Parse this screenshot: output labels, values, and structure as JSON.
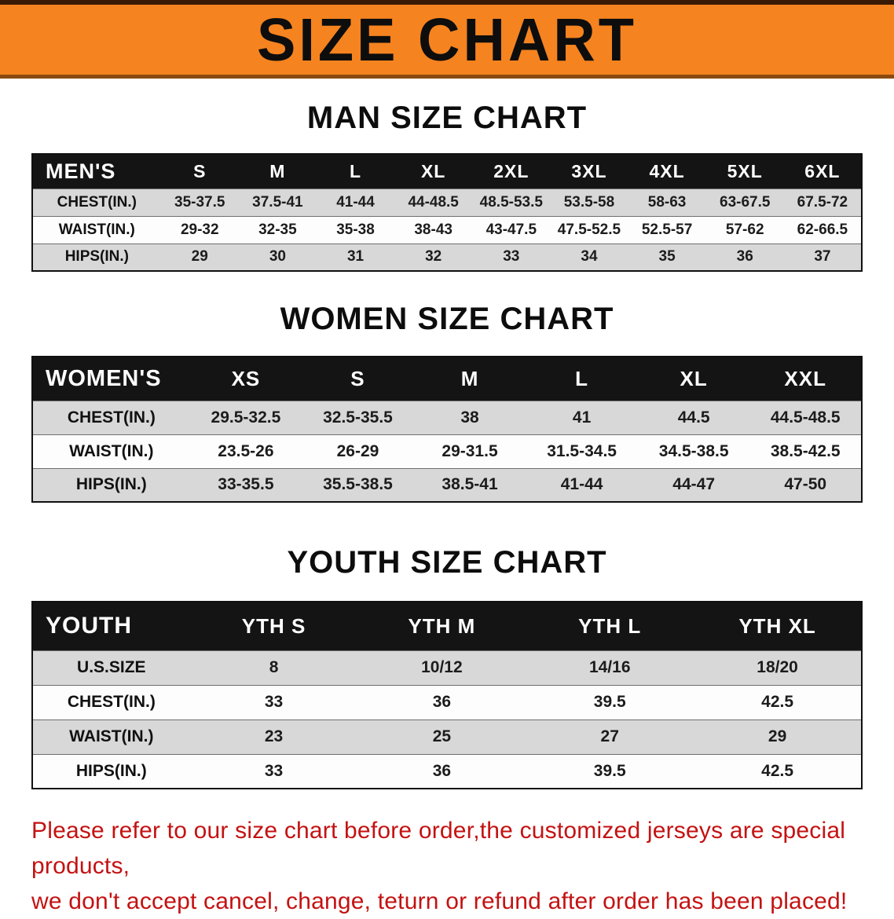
{
  "banner": {
    "title": "SIZE CHART",
    "bg_color": "#F5831F",
    "text_color": "#0d0d0d"
  },
  "sections": [
    {
      "heading": "MAN SIZE CHART",
      "table": {
        "header": [
          "MEN'S",
          "S",
          "M",
          "L",
          "XL",
          "2XL",
          "3XL",
          "4XL",
          "5XL",
          "6XL"
        ],
        "rows": [
          [
            "CHEST(IN.)",
            "35-37.5",
            "37.5-41",
            "41-44",
            "44-48.5",
            "48.5-53.5",
            "53.5-58",
            "58-63",
            "63-67.5",
            "67.5-72"
          ],
          [
            "WAIST(IN.)",
            "29-32",
            "32-35",
            "35-38",
            "38-43",
            "43-47.5",
            "47.5-52.5",
            "52.5-57",
            "57-62",
            "62-66.5"
          ],
          [
            "HIPS(IN.)",
            "29",
            "30",
            "31",
            "32",
            "33",
            "34",
            "35",
            "36",
            "37"
          ]
        ]
      }
    },
    {
      "heading": "WOMEN SIZE CHART",
      "table": {
        "header": [
          "WOMEN'S",
          "XS",
          "S",
          "M",
          "L",
          "XL",
          "XXL"
        ],
        "rows": [
          [
            "CHEST(IN.)",
            "29.5-32.5",
            "32.5-35.5",
            "38",
            "41",
            "44.5",
            "44.5-48.5"
          ],
          [
            "WAIST(IN.)",
            "23.5-26",
            "26-29",
            "29-31.5",
            "31.5-34.5",
            "34.5-38.5",
            "38.5-42.5"
          ],
          [
            "HIPS(IN.)",
            "33-35.5",
            "35.5-38.5",
            "38.5-41",
            "41-44",
            "44-47",
            "47-50"
          ]
        ]
      }
    },
    {
      "heading": "YOUTH SIZE CHART",
      "table": {
        "header": [
          "YOUTH",
          "YTH S",
          "YTH M",
          "YTH L",
          "YTH XL"
        ],
        "rows": [
          [
            "U.S.SIZE",
            "8",
            "10/12",
            "14/16",
            "18/20"
          ],
          [
            "CHEST(IN.)",
            "33",
            "36",
            "39.5",
            "42.5"
          ],
          [
            "WAIST(IN.)",
            "23",
            "25",
            "27",
            "29"
          ],
          [
            "HIPS(IN.)",
            "33",
            "36",
            "39.5",
            "42.5"
          ]
        ]
      }
    }
  ],
  "footer": {
    "line1": "Please refer to our size chart before order,the customized jerseys are special products,",
    "line2": "we don't accept cancel, change, teturn or refund after order has been placed!",
    "text_color": "#c41212"
  },
  "colors": {
    "table_header_bg": "#141414",
    "row_alt_bg": "#d8d8d8",
    "row_bg": "#fdfdfd"
  }
}
